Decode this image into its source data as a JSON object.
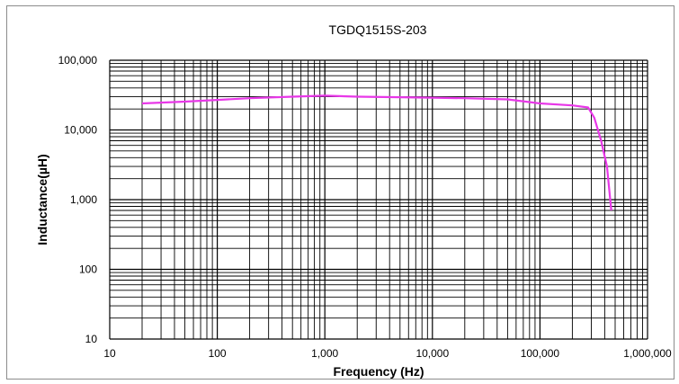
{
  "chart_data": {
    "type": "line",
    "title": "TGDQ1515S-203",
    "xlabel": "Frequency (Hz)",
    "ylabel": "Inductance(µH)",
    "x_scale": "log",
    "y_scale": "log",
    "xlim": [
      10,
      1000000
    ],
    "ylim": [
      10,
      100000
    ],
    "x_ticks": [
      "10",
      "100",
      "1,000",
      "10,000",
      "100,000",
      "1,000,000"
    ],
    "y_ticks": [
      "10",
      "100",
      "1,000",
      "10,000",
      "100,000"
    ],
    "grid": true,
    "line_color": "#e838e8",
    "series": [
      {
        "x": [
          20,
          50,
          100,
          200,
          500,
          1000,
          2000,
          5000,
          10000,
          20000,
          50000,
          100000,
          200000,
          280000,
          320000,
          370000,
          420000,
          460000
        ],
        "values": [
          24000,
          25500,
          27000,
          28500,
          30000,
          31000,
          30000,
          29500,
          29000,
          28500,
          27500,
          24000,
          22500,
          21000,
          15000,
          7000,
          3000,
          700
        ]
      }
    ]
  }
}
